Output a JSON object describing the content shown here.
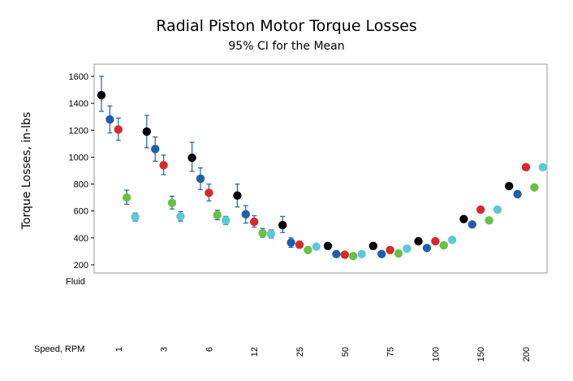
{
  "chart_data": {
    "type": "scatter",
    "title": "Radial Piston Motor Torque Losses",
    "subtitle": "95% CI for the Mean",
    "ylabel": "Torque Losses, in-lbs",
    "ylim": [
      200,
      1650
    ],
    "yticks": [
      200,
      400,
      600,
      800,
      1000,
      1200,
      1400,
      1600
    ],
    "row_labels": [
      "Fluid",
      "Speed, RPM"
    ],
    "categories": [
      "1",
      "3",
      "6",
      "12",
      "25",
      "50",
      "75",
      "100",
      "150",
      "200"
    ],
    "grid": false,
    "legend": "none",
    "series": [
      {
        "color": "#000000",
        "values": [
          1460,
          1190,
          995,
          715,
          495,
          340,
          340,
          375,
          540,
          785
        ],
        "ci_low": [
          1340,
          1070,
          895,
          630,
          440,
          315,
          315,
          355,
          520,
          765
        ],
        "ci_high": [
          1600,
          1310,
          1110,
          800,
          560,
          365,
          365,
          395,
          560,
          805
        ]
      },
      {
        "color": "#1f5fa8",
        "values": [
          1280,
          1060,
          840,
          575,
          365,
          280,
          280,
          325,
          500,
          725
        ],
        "ci_low": [
          1180,
          970,
          760,
          510,
          330,
          265,
          265,
          310,
          485,
          710
        ],
        "ci_high": [
          1380,
          1150,
          920,
          640,
          400,
          295,
          295,
          340,
          515,
          740
        ]
      },
      {
        "color": "#d42a2a",
        "values": [
          1205,
          940,
          735,
          520,
          350,
          275,
          310,
          375,
          610,
          925
        ],
        "ci_low": [
          1125,
          870,
          675,
          480,
          325,
          262,
          298,
          362,
          597,
          912
        ],
        "ci_high": [
          1290,
          1015,
          800,
          565,
          375,
          288,
          322,
          388,
          623,
          938
        ]
      },
      {
        "color": "#6abf45",
        "values": [
          700,
          660,
          570,
          435,
          310,
          265,
          285,
          345,
          530,
          775
        ],
        "ci_low": [
          650,
          615,
          535,
          405,
          290,
          253,
          272,
          332,
          517,
          762
        ],
        "ci_high": [
          755,
          710,
          605,
          470,
          330,
          277,
          298,
          358,
          543,
          788
        ]
      },
      {
        "color": "#5ec8d6",
        "values": [
          555,
          560,
          530,
          430,
          335,
          280,
          320,
          385,
          610,
          925
        ],
        "ci_low": [
          525,
          525,
          500,
          400,
          315,
          268,
          307,
          372,
          597,
          912
        ],
        "ci_high": [
          585,
          595,
          560,
          460,
          355,
          292,
          333,
          398,
          623,
          938
        ]
      }
    ]
  }
}
